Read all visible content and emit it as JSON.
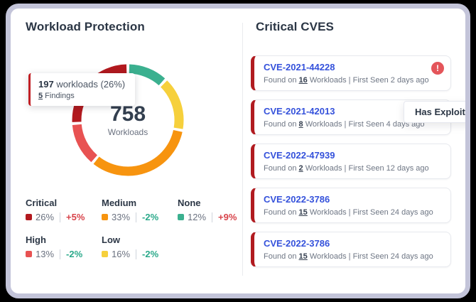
{
  "colors": {
    "frame_border": "#c3c4d9",
    "cve_link_blue": "#3451db",
    "card_stripe_red": "#b11b20",
    "alert_badge_red": "#e4555a",
    "trend_up_red": "#d8434a",
    "trend_down_teal": "#2aa98a",
    "tooltip_accent_red": "#c11f24"
  },
  "left_panel": {
    "title": "Workload Protection"
  },
  "chart_data": {
    "type": "pie",
    "title": "Workload Protection",
    "center_total": "758",
    "center_label": "Workloads",
    "donut_order_clockwise_from_top": [
      "None",
      "Low",
      "Medium",
      "High",
      "Critical"
    ],
    "legend_order": [
      "Critical",
      "Medium",
      "None",
      "High",
      "Low"
    ],
    "series": [
      {
        "name": "Critical",
        "pct": 26,
        "pct_label": "26%",
        "trend": "+5%",
        "direction": "up",
        "color": "#b2191e"
      },
      {
        "name": "Medium",
        "pct": 33,
        "pct_label": "33%",
        "trend": "-2%",
        "direction": "down",
        "color": "#f7940f"
      },
      {
        "name": "None",
        "pct": 12,
        "pct_label": "12%",
        "trend": "+9%",
        "direction": "up",
        "color": "#3bb08f"
      },
      {
        "name": "High",
        "pct": 13,
        "pct_label": "13%",
        "trend": "-2%",
        "direction": "down",
        "color": "#e85252"
      },
      {
        "name": "Low",
        "pct": 16,
        "pct_label": "16%",
        "trend": "-2%",
        "direction": "down",
        "color": "#f6d03c"
      }
    ],
    "tooltip": {
      "value": "197",
      "text": " workloads (26%)",
      "findings_value": "5",
      "findings_text": " Findings"
    }
  },
  "cve_panel": {
    "title": "Critical CVES",
    "has_exploit_tooltip": "Has Exploit",
    "meta_labels": {
      "found_on": "Found on ",
      "workloads": " Workloads",
      "separator": " | ",
      "first_seen": "First Seen "
    },
    "cards": [
      {
        "id": "CVE-2021-44228",
        "workloads": "16",
        "first_seen": "2 days ago",
        "alert": true
      },
      {
        "id": "CVE-2021-42013",
        "workloads": "8",
        "first_seen": "4 days ago",
        "alert": false
      },
      {
        "id": "CVE-2022-47939",
        "workloads": "2",
        "first_seen": "12 days ago",
        "alert": false
      },
      {
        "id": "CVE-2022-3786",
        "workloads": "15",
        "first_seen": "24 days ago",
        "alert": false
      },
      {
        "id": "CVE-2022-3786",
        "workloads": "15",
        "first_seen": "24 days ago",
        "alert": false
      }
    ]
  }
}
